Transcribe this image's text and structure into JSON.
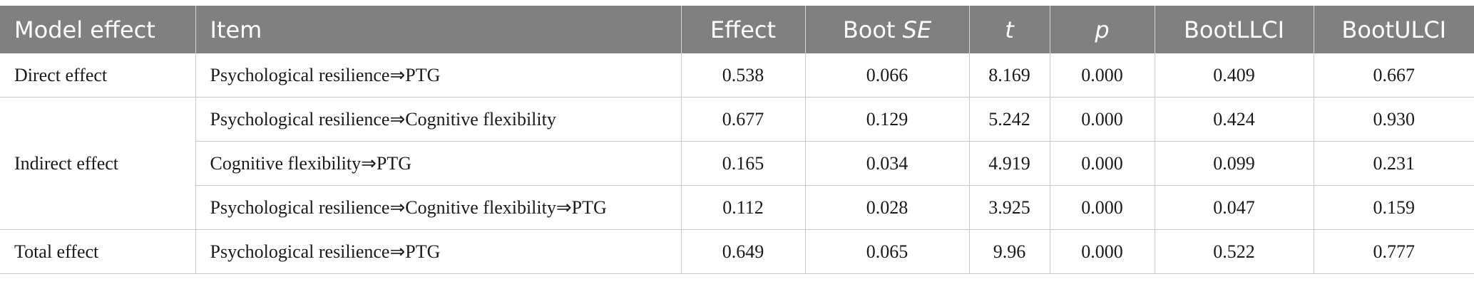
{
  "table": {
    "headers": [
      {
        "text": "Model effect",
        "italic": false
      },
      {
        "text": "Item",
        "italic": false
      },
      {
        "text": "Effect",
        "italic": false
      },
      {
        "text_prefix": "Boot ",
        "text_italic": "SE"
      },
      {
        "text": "t",
        "italic": true
      },
      {
        "text": "p",
        "italic": true
      },
      {
        "text": "BootLLCI",
        "italic": false
      },
      {
        "text": "BootULCI",
        "italic": false
      }
    ],
    "groups": [
      {
        "model_effect": "Direct effect",
        "rows": [
          {
            "item": "Psychological resilience⇒PTG",
            "effect": "0.538",
            "boot_se": "0.066",
            "t": "8.169",
            "p": "0.000",
            "llci": "0.409",
            "ulci": "0.667"
          }
        ]
      },
      {
        "model_effect": "Indirect effect",
        "rows": [
          {
            "item": "Psychological resilience⇒Cognitive flexibility",
            "effect": "0.677",
            "boot_se": "0.129",
            "t": "5.242",
            "p": "0.000",
            "llci": "0.424",
            "ulci": "0.930"
          },
          {
            "item": "Cognitive flexibility⇒PTG",
            "effect": "0.165",
            "boot_se": "0.034",
            "t": "4.919",
            "p": "0.000",
            "llci": "0.099",
            "ulci": "0.231"
          },
          {
            "item": "Psychological resilience⇒Cognitive flexibility⇒PTG",
            "effect": "0.112",
            "boot_se": "0.028",
            "t": "3.925",
            "p": "0.000",
            "llci": "0.047",
            "ulci": "0.159"
          }
        ]
      },
      {
        "model_effect": "Total effect",
        "rows": [
          {
            "item": "Psychological resilience⇒PTG",
            "effect": "0.649",
            "boot_se": "0.065",
            "t": "9.96",
            "p": "0.000",
            "llci": "0.522",
            "ulci": "0.777"
          }
        ]
      }
    ],
    "colors": {
      "header_bg": "#808080",
      "header_text": "#ffffff",
      "grid_line": "#c8c8c8",
      "body_text": "#1a1a1a"
    }
  }
}
